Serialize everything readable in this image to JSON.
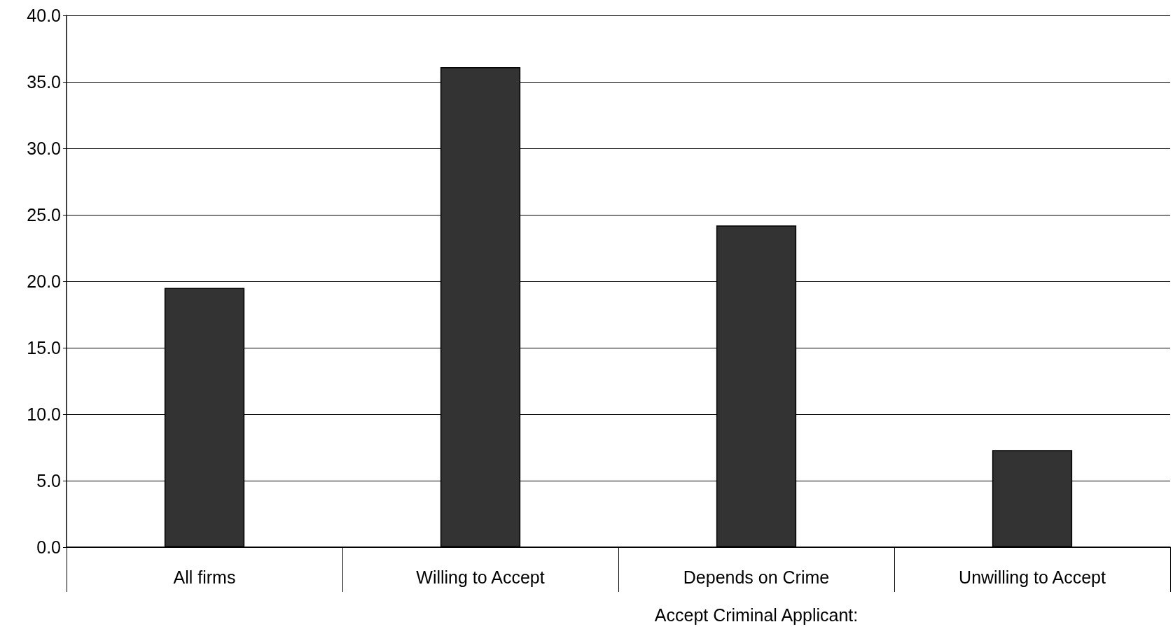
{
  "chart_data": {
    "type": "bar",
    "categories": [
      "All firms",
      "Willing to Accept",
      "Depends on Crime",
      "Unwilling to Accept"
    ],
    "values": [
      19.5,
      36.1,
      24.2,
      7.3
    ],
    "color": "#333333",
    "ylim": [
      0,
      40
    ],
    "yticks": [
      {
        "value": 0,
        "label": "0.0"
      },
      {
        "value": 5,
        "label": "5.0"
      },
      {
        "value": 10,
        "label": "10.0"
      },
      {
        "value": 15,
        "label": "15.0"
      },
      {
        "value": 20,
        "label": "20.0"
      },
      {
        "value": 25,
        "label": "25.0"
      },
      {
        "value": 30,
        "label": "30.0"
      },
      {
        "value": 35,
        "label": "35.0"
      },
      {
        "value": 40,
        "label": "40.0"
      }
    ],
    "grid": "y",
    "annotations": [
      "Accept Criminal Applicant:"
    ]
  }
}
